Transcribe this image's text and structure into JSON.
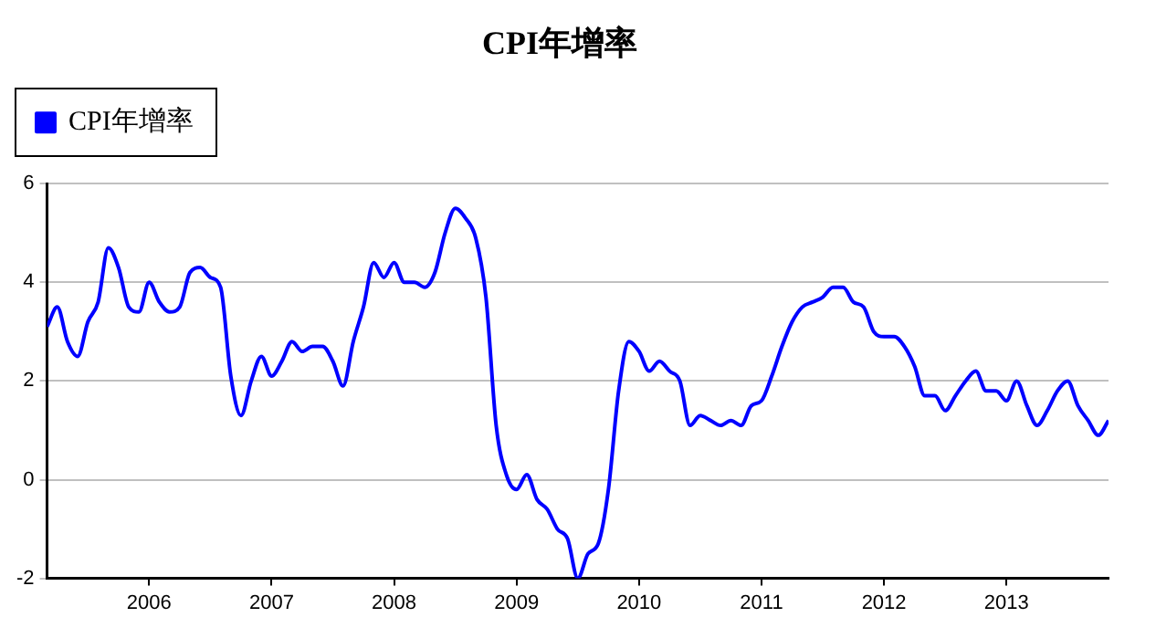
{
  "chart_data": {
    "type": "line",
    "title": "CPI年增率",
    "x": [
      "2005-03",
      "2005-04",
      "2005-05",
      "2005-06",
      "2005-07",
      "2005-08",
      "2005-09",
      "2005-10",
      "2005-11",
      "2005-12",
      "2006-01",
      "2006-02",
      "2006-03",
      "2006-04",
      "2006-05",
      "2006-06",
      "2006-07",
      "2006-08",
      "2006-09",
      "2006-10",
      "2006-11",
      "2006-12",
      "2007-01",
      "2007-02",
      "2007-03",
      "2007-04",
      "2007-05",
      "2007-06",
      "2007-07",
      "2007-08",
      "2007-09",
      "2007-10",
      "2007-11",
      "2007-12",
      "2008-01",
      "2008-02",
      "2008-03",
      "2008-04",
      "2008-05",
      "2008-06",
      "2008-07",
      "2008-08",
      "2008-09",
      "2008-10",
      "2008-11",
      "2008-12",
      "2009-01",
      "2009-02",
      "2009-03",
      "2009-04",
      "2009-05",
      "2009-06",
      "2009-07",
      "2009-08",
      "2009-09",
      "2009-10",
      "2009-11",
      "2009-12",
      "2010-01",
      "2010-02",
      "2010-03",
      "2010-04",
      "2010-05",
      "2010-06",
      "2010-07",
      "2010-08",
      "2010-09",
      "2010-10",
      "2010-11",
      "2010-12",
      "2011-01",
      "2011-02",
      "2011-03",
      "2011-04",
      "2011-05",
      "2011-06",
      "2011-07",
      "2011-08",
      "2011-09",
      "2011-10",
      "2011-11",
      "2011-12",
      "2012-01",
      "2012-02",
      "2012-03",
      "2012-04",
      "2012-05",
      "2012-06",
      "2012-07",
      "2012-08",
      "2012-09",
      "2012-10",
      "2012-11",
      "2012-12",
      "2013-01",
      "2013-02",
      "2013-03",
      "2013-04",
      "2013-05",
      "2013-06",
      "2013-07",
      "2013-08",
      "2013-09",
      "2013-10",
      "2013-11"
    ],
    "series": [
      {
        "name": "CPI年增率",
        "color": "#0000ff",
        "values": [
          3.1,
          3.5,
          2.8,
          2.5,
          3.2,
          3.6,
          4.7,
          4.3,
          3.5,
          3.4,
          4.0,
          3.6,
          3.4,
          3.5,
          4.2,
          4.3,
          4.1,
          3.9,
          2.1,
          1.3,
          2.0,
          2.5,
          2.1,
          2.4,
          2.8,
          2.6,
          2.7,
          2.7,
          2.4,
          1.9,
          2.8,
          3.5,
          4.4,
          4.1,
          4.4,
          4.0,
          4.0,
          3.9,
          4.2,
          5.0,
          5.5,
          5.3,
          4.9,
          3.7,
          1.1,
          0.1,
          -0.2,
          0.1,
          -0.4,
          -0.6,
          -1.0,
          -1.2,
          -2.0,
          -1.5,
          -1.3,
          -0.2,
          1.8,
          2.8,
          2.6,
          2.2,
          2.4,
          2.2,
          2.0,
          1.1,
          1.3,
          1.2,
          1.1,
          1.2,
          1.1,
          1.5,
          1.6,
          2.1,
          2.7,
          3.2,
          3.5,
          3.6,
          3.7,
          3.9,
          3.9,
          3.6,
          3.5,
          3.0,
          2.9,
          2.9,
          2.7,
          2.3,
          1.7,
          1.7,
          1.4,
          1.7,
          2.0,
          2.2,
          1.8,
          1.8,
          1.6,
          2.0,
          1.5,
          1.1,
          1.4,
          1.8,
          2.0,
          1.5,
          1.2,
          0.9,
          1.2
        ]
      }
    ],
    "xlim": [
      "2005-03",
      "2013-11"
    ],
    "xticks": [
      "2006",
      "2007",
      "2008",
      "2009",
      "2010",
      "2011",
      "2012",
      "2013"
    ],
    "ylim": [
      -2,
      6
    ],
    "yticks": [
      -2,
      0,
      2,
      4,
      6
    ],
    "grid": "y",
    "legend": "top left",
    "marker": "none",
    "line_style": "solid"
  }
}
